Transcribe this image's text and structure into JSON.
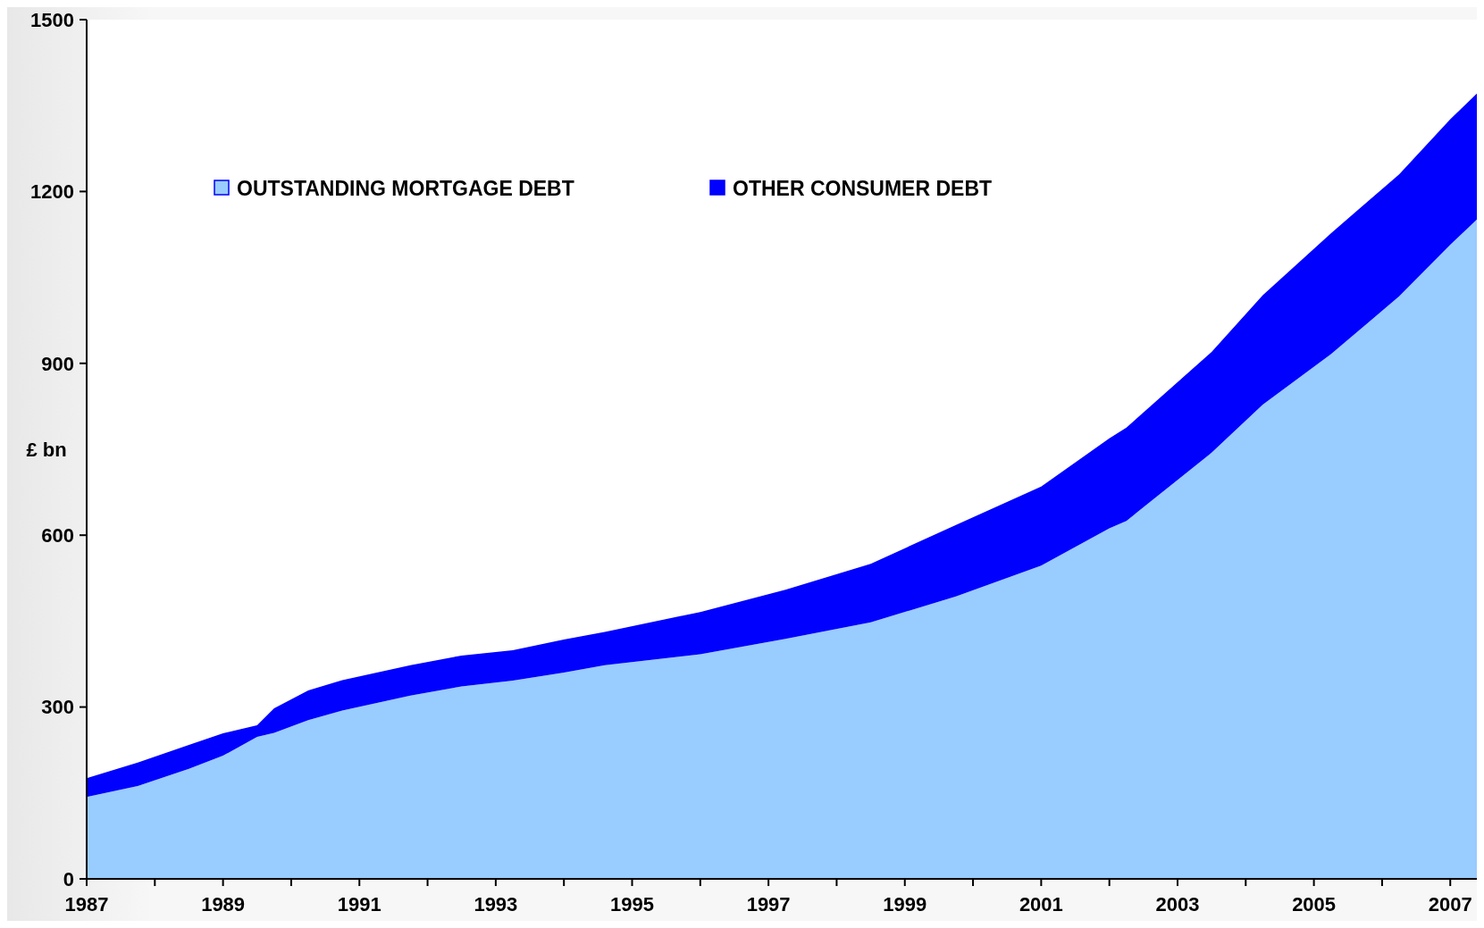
{
  "chart_data": {
    "type": "area",
    "stacked": true,
    "ylabel": "£ bn",
    "x": [
      1987,
      1987.75,
      1988.5,
      1989,
      1989.5,
      1989.75,
      1990.25,
      1990.75,
      1991.75,
      1992.5,
      1993.25,
      1994,
      1994.6,
      1996,
      1997.25,
      1998.5,
      1999.75,
      2001,
      2002,
      2002.25,
      2003.5,
      2004.25,
      2005.25,
      2006.25,
      2007,
      2007.39
    ],
    "series": [
      {
        "name": "OUTSTANDING MORTGAGE DEBT",
        "color": "#99ccff",
        "values": [
          143,
          162,
          192,
          215,
          248,
          255,
          277,
          294,
          320,
          336,
          346,
          360,
          373,
          392,
          419,
          448,
          493,
          547,
          612,
          625,
          744,
          828,
          916,
          1017,
          1107,
          1151
        ]
      },
      {
        "name": "OTHER CONSUMER DEBT",
        "color": "#0000ff",
        "values": [
          33,
          41,
          42,
          39,
          20,
          43,
          52,
          53,
          53,
          54,
          53,
          58,
          58,
          74,
          86,
          102,
          125,
          138,
          157,
          163,
          176,
          191,
          211,
          213,
          219,
          220
        ]
      }
    ],
    "xlim": [
      1987,
      2007.39
    ],
    "xticks": [
      1987,
      {
        "value": 1988,
        "label": null
      },
      1989,
      {
        "value": 1990,
        "label": null
      },
      1991,
      {
        "value": 1992,
        "label": null
      },
      1993,
      {
        "value": 1994,
        "label": null
      },
      1995,
      {
        "value": 1996,
        "label": null
      },
      1997,
      {
        "value": 1998,
        "label": null
      },
      1999,
      {
        "value": 2000,
        "label": null
      },
      2001,
      {
        "value": 2002,
        "label": null
      },
      2003,
      {
        "value": 2004,
        "label": null
      },
      2005,
      {
        "value": 2006,
        "label": null
      },
      2007
    ],
    "ylim": [
      0,
      1500
    ],
    "yticks": [
      0,
      300,
      600,
      900,
      1200,
      1500
    ],
    "grid": false,
    "legend": "top left"
  }
}
